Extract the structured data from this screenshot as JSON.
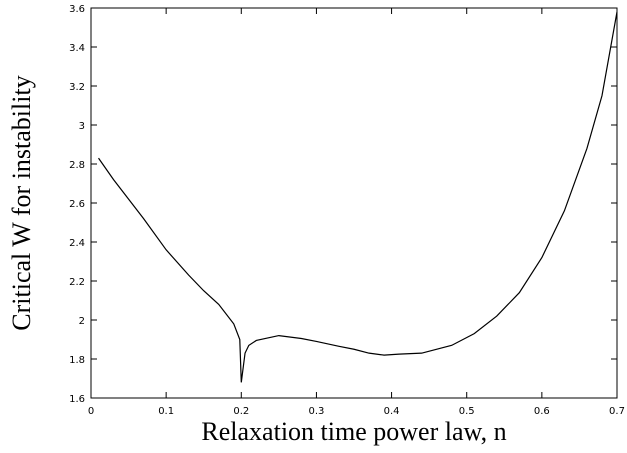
{
  "chart_data": {
    "type": "line",
    "x_label": "Relaxation time power law, n",
    "y_label": "Critical W for instability",
    "xlim": [
      0,
      0.7
    ],
    "ylim": [
      1.6,
      3.6
    ],
    "xticks": [
      0,
      0.1,
      0.2,
      0.3,
      0.4,
      0.5,
      0.6,
      0.7
    ],
    "yticks": [
      1.6,
      1.8,
      2,
      2.2,
      2.4,
      2.6,
      2.8,
      3,
      3.2,
      3.4,
      3.6
    ],
    "x": [
      0.01,
      0.03,
      0.05,
      0.07,
      0.1,
      0.13,
      0.15,
      0.17,
      0.19,
      0.198,
      0.2,
      0.205,
      0.21,
      0.22,
      0.25,
      0.28,
      0.3,
      0.33,
      0.35,
      0.37,
      0.39,
      0.41,
      0.44,
      0.48,
      0.51,
      0.54,
      0.57,
      0.6,
      0.63,
      0.66,
      0.68,
      0.7
    ],
    "series": [
      {
        "color": "#000000",
        "values": [
          2.83,
          2.72,
          2.62,
          2.52,
          2.36,
          2.23,
          2.15,
          2.08,
          1.98,
          1.9,
          1.68,
          1.83,
          1.87,
          1.895,
          1.92,
          1.905,
          1.89,
          1.865,
          1.85,
          1.83,
          1.82,
          1.825,
          1.83,
          1.87,
          1.93,
          2.02,
          2.14,
          2.32,
          2.56,
          2.88,
          3.15,
          3.58
        ]
      }
    ]
  }
}
